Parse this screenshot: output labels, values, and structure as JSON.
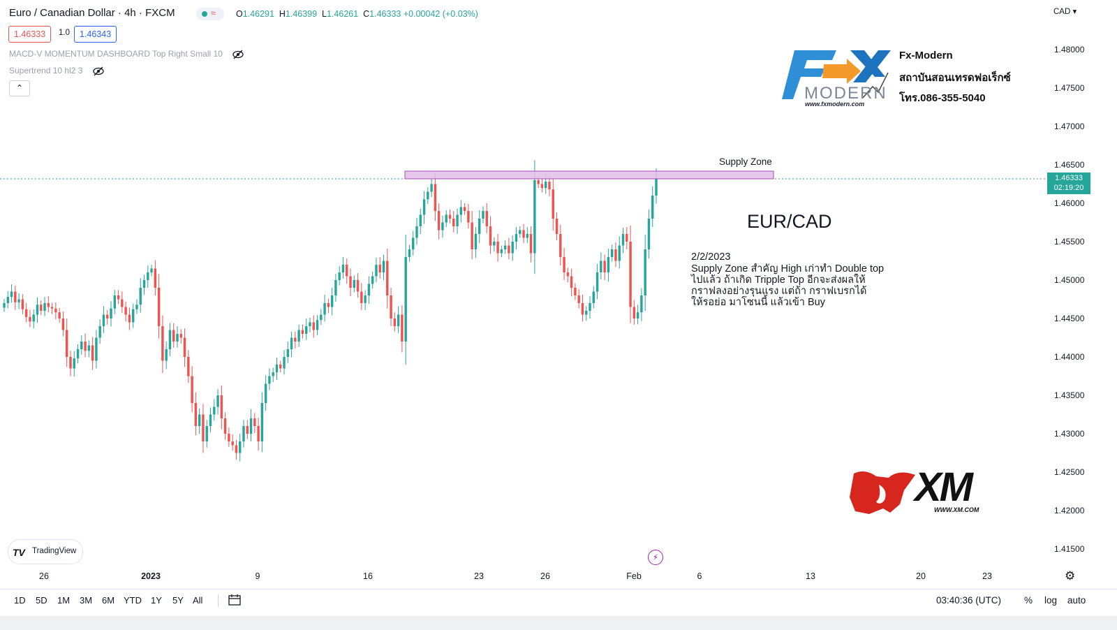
{
  "header": {
    "title": "Euro / Canadian Dollar · 4h · FXCM",
    "ohlc": {
      "o_label": "O",
      "o": "1.46291",
      "h_label": "H",
      "h": "1.46399",
      "l_label": "L",
      "l": "1.46261",
      "c_label": "C",
      "c": "1.46333",
      "change": "+0.00042 (+0.03%)"
    },
    "sell_price": "1.46333",
    "spread": "1.0",
    "buy_price": "1.46343",
    "indicators": [
      "MACD-V MOMENTUM DASHBOARD Top Right Small 10",
      "Supertrend 10 hl2 3"
    ],
    "collapse_glyph": "⌃"
  },
  "price_axis": {
    "currency": "CAD ▾",
    "ticks": [
      "1.48000",
      "1.47500",
      "1.47000",
      "1.46500",
      "1.46000",
      "1.45500",
      "1.45000",
      "1.44500",
      "1.44000",
      "1.43500",
      "1.43000",
      "1.42500",
      "1.42000",
      "1.41500"
    ],
    "current_price": "1.46333",
    "countdown": "02:19:20"
  },
  "time_axis": {
    "ticks": [
      {
        "label": "26",
        "bold": false
      },
      {
        "label": "2023",
        "bold": true
      },
      {
        "label": "9",
        "bold": false
      },
      {
        "label": "16",
        "bold": false
      },
      {
        "label": "23",
        "bold": false
      },
      {
        "label": "26",
        "bold": false
      },
      {
        "label": "Feb",
        "bold": false
      },
      {
        "label": "6",
        "bold": false
      },
      {
        "label": "13",
        "bold": false
      },
      {
        "label": "20",
        "bold": false
      },
      {
        "label": "23",
        "bold": false
      }
    ]
  },
  "annotations": {
    "supply_zone_label": "Supply Zone",
    "pair_title": "EUR/CAD",
    "note_date": "2/2/2023",
    "note_lines": [
      "Supply Zone สำคัญ High เก่าทำ Double top",
      "ไปแล้ว ถ้าเกิด Tripple Top อีกจะส่งผลให้",
      "กราฟลงอย่างรุนแรง แต่ถ้า กราฟเบรกได้",
      "ให้รอย่อ มาโซนนี้ แล้วเข้า Buy"
    ]
  },
  "fx_modern_logo": {
    "wordmark": "MODERN",
    "url": "www.fxmodern.com",
    "lines": [
      "Fx-Modern",
      "สถาบันสอนเทรดฟอเร็กซ์",
      "โทร.086-355-5040"
    ]
  },
  "xm_logo": {
    "text": "XM",
    "url": "WWW.XM.COM"
  },
  "bottom_toolbar": {
    "timeframes": [
      "1D",
      "5D",
      "1M",
      "3M",
      "6M",
      "YTD",
      "1Y",
      "5Y",
      "All"
    ],
    "clock": "03:40:36 (UTC)",
    "options": [
      "%",
      "log",
      "auto"
    ]
  },
  "branding": {
    "tradingview": "TradingView"
  },
  "colors": {
    "up": "#26a69a",
    "down": "#ef5350",
    "zone_fill": "#e1bee7",
    "zone_border": "#ab47bc",
    "accent": "#2962ff"
  },
  "chart_data": {
    "type": "candlestick",
    "symbol": "EURCAD",
    "timeframe": "4h",
    "ylim": [
      1.4125,
      1.4825
    ],
    "supply_zone": [
      1.4629,
      1.4639
    ],
    "current_price": 1.46333,
    "closes": [
      1.447,
      1.4478,
      1.4485,
      1.4471,
      1.4475,
      1.4462,
      1.4452,
      1.4446,
      1.4455,
      1.4468,
      1.446,
      1.447,
      1.4465,
      1.4463,
      1.4458,
      1.445,
      1.4435,
      1.44,
      1.4385,
      1.4398,
      1.441,
      1.442,
      1.4408,
      1.4415,
      1.4395,
      1.4425,
      1.444,
      1.4455,
      1.445,
      1.4463,
      1.448,
      1.4475,
      1.4465,
      1.4455,
      1.4445,
      1.4462,
      1.4468,
      1.449,
      1.45,
      1.451,
      1.4515,
      1.449,
      1.444,
      1.4395,
      1.441,
      1.4435,
      1.442,
      1.443,
      1.4425,
      1.44,
      1.4375,
      1.434,
      1.431,
      1.4325,
      1.429,
      1.431,
      1.4325,
      1.4335,
      1.435,
      1.432,
      1.43,
      1.429,
      1.4285,
      1.4275,
      1.429,
      1.431,
      1.43,
      1.432,
      1.431,
      1.429,
      1.434,
      1.4365,
      1.4375,
      1.438,
      1.439,
      1.4385,
      1.44,
      1.441,
      1.4425,
      1.442,
      1.4435,
      1.443,
      1.444,
      1.4445,
      1.4435,
      1.4448,
      1.4455,
      1.447,
      1.4465,
      1.448,
      1.45,
      1.451,
      1.452,
      1.4505,
      1.449,
      1.45,
      1.4485,
      1.447,
      1.448,
      1.4495,
      1.4505,
      1.452,
      1.451,
      1.4525,
      1.448,
      1.445,
      1.444,
      1.4455,
      1.442,
      1.453,
      1.454,
      1.4555,
      1.457,
      1.4585,
      1.4605,
      1.4615,
      1.4625,
      1.459,
      1.4565,
      1.4575,
      1.4585,
      1.458,
      1.457,
      1.4585,
      1.4595,
      1.459,
      1.4575,
      1.454,
      1.456,
      1.458,
      1.459,
      1.457,
      1.4545,
      1.455,
      1.4535,
      1.454,
      1.4545,
      1.4535,
      1.455,
      1.456,
      1.4565,
      1.4555,
      1.456,
      1.4535,
      1.463,
      1.4625,
      1.462,
      1.4628,
      1.4618,
      1.458,
      1.456,
      1.453,
      1.451,
      1.4505,
      1.449,
      1.448,
      1.447,
      1.4455,
      1.446,
      1.447,
      1.4485,
      1.451,
      1.4525,
      1.451,
      1.453,
      1.454,
      1.4525,
      1.4545,
      1.456,
      1.455,
      1.4465,
      1.445,
      1.4458,
      1.448,
      1.454,
      1.458,
      1.461,
      1.4633
    ]
  }
}
